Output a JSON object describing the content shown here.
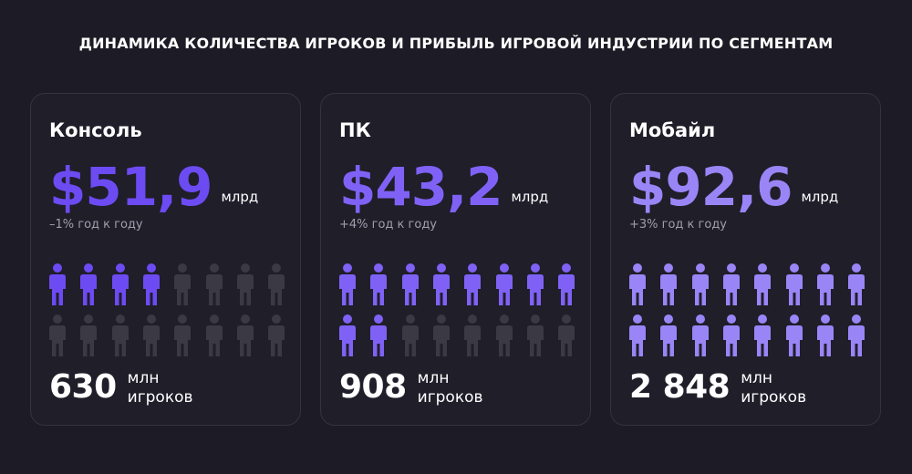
{
  "title": "ДИНАМИКА КОЛИЧЕСТВА ИГРОКОВ И ПРИБЫЛЬ ИГРОВОЙ ИНДУСТРИИ ПО СЕГМЕНТАМ",
  "colors": {
    "background": "#1d1c26",
    "card": "#1f1e29",
    "icon_inactive": "#3a3944"
  },
  "chart_data": {
    "type": "table",
    "segments": [
      {
        "name": "Консоль",
        "revenue": "$51,9",
        "revenue_value": 51.9,
        "revenue_unit": "млрд",
        "growth": "–1% год к году",
        "growth_pct": -1,
        "players": "630",
        "players_value": 630,
        "players_unit": "млн",
        "players_label": "игроков",
        "color": "#6d4bf2",
        "icons_filled": 4,
        "icons_total": 16
      },
      {
        "name": "ПК",
        "revenue": "$43,2",
        "revenue_value": 43.2,
        "revenue_unit": "млрд",
        "growth": "+4% год к году",
        "growth_pct": 4,
        "players": "908",
        "players_value": 908,
        "players_unit": "млн",
        "players_label": "игроков",
        "color": "#7f62f5",
        "icons_filled": 10,
        "icons_total": 16
      },
      {
        "name": "Мобайл",
        "revenue": "$92,6",
        "revenue_value": 92.6,
        "revenue_unit": "млрд",
        "growth": "+3% год к году",
        "growth_pct": 3,
        "players": "2 848",
        "players_value": 2848,
        "players_unit": "млн",
        "players_label": "игроков",
        "color": "#9a85f7",
        "icons_filled": 16,
        "icons_total": 16
      }
    ]
  }
}
